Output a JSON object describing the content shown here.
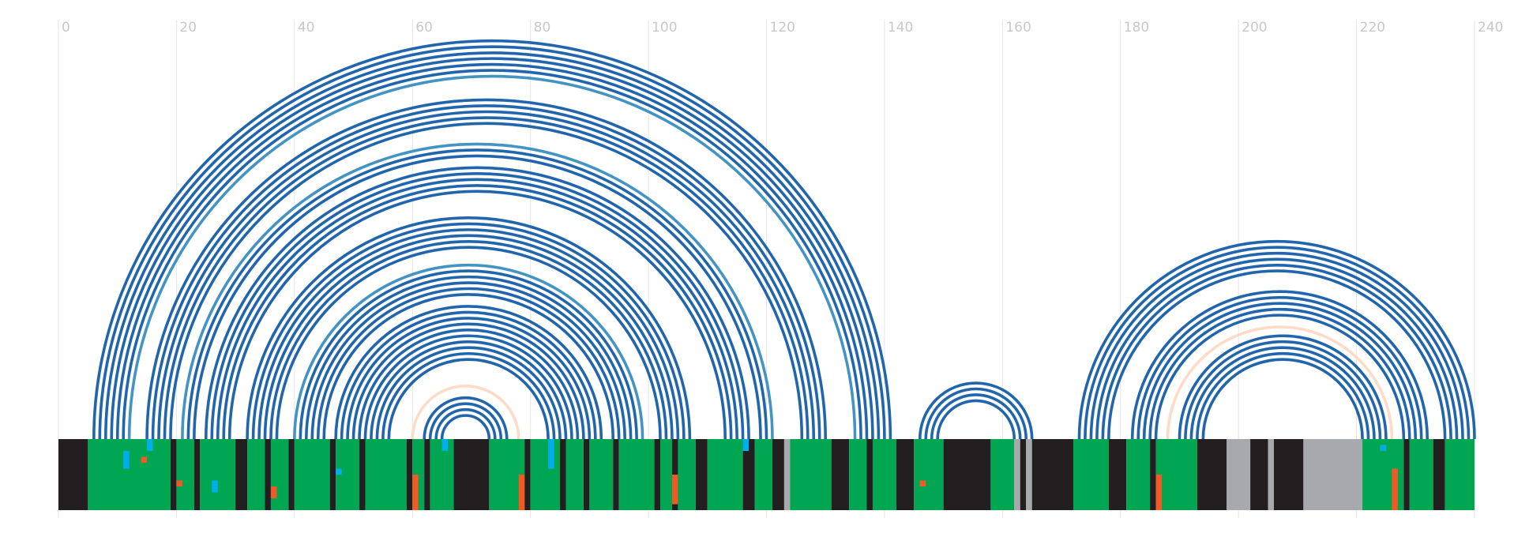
{
  "chart_data": {
    "type": "arc",
    "xlim": [
      0,
      240
    ],
    "xticks": [
      0,
      20,
      40,
      60,
      80,
      100,
      120,
      140,
      160,
      180,
      200,
      220,
      240
    ],
    "grid": true,
    "arcs": [
      {
        "i": 6,
        "j": 141,
        "color": "#2166ac"
      },
      {
        "i": 7,
        "j": 140,
        "color": "#2166ac"
      },
      {
        "i": 8,
        "j": 139,
        "color": "#2166ac"
      },
      {
        "i": 9,
        "j": 138,
        "color": "#2166ac"
      },
      {
        "i": 10,
        "j": 137,
        "color": "#2166ac"
      },
      {
        "i": 11,
        "j": 136,
        "color": "#2166ac"
      },
      {
        "i": 12,
        "j": 135,
        "color": "#4393c3"
      },
      {
        "i": 15,
        "j": 130,
        "color": "#2166ac"
      },
      {
        "i": 16,
        "j": 129,
        "color": "#2166ac"
      },
      {
        "i": 17,
        "j": 128,
        "color": "#2166ac"
      },
      {
        "i": 18,
        "j": 127,
        "color": "#2166ac"
      },
      {
        "i": 19,
        "j": 126,
        "color": "#2166ac"
      },
      {
        "i": 21,
        "j": 121,
        "color": "#4393c3"
      },
      {
        "i": 22,
        "j": 120,
        "color": "#2166ac"
      },
      {
        "i": 23,
        "j": 119,
        "color": "#2166ac"
      },
      {
        "i": 25,
        "j": 117,
        "color": "#2166ac"
      },
      {
        "i": 26,
        "j": 116,
        "color": "#2166ac"
      },
      {
        "i": 27,
        "j": 115,
        "color": "#2166ac"
      },
      {
        "i": 28,
        "j": 114,
        "color": "#2166ac"
      },
      {
        "i": 29,
        "j": 113,
        "color": "#2166ac"
      },
      {
        "i": 32,
        "j": 107,
        "color": "#2166ac"
      },
      {
        "i": 33,
        "j": 106,
        "color": "#2166ac"
      },
      {
        "i": 34,
        "j": 105,
        "color": "#2166ac"
      },
      {
        "i": 35,
        "j": 104,
        "color": "#2166ac"
      },
      {
        "i": 36,
        "j": 103,
        "color": "#2166ac"
      },
      {
        "i": 37,
        "j": 102,
        "color": "#2166ac"
      },
      {
        "i": 40,
        "j": 99,
        "color": "#4393c3"
      },
      {
        "i": 41,
        "j": 98,
        "color": "#2166ac"
      },
      {
        "i": 42,
        "j": 97,
        "color": "#2166ac"
      },
      {
        "i": 43,
        "j": 96,
        "color": "#2166ac"
      },
      {
        "i": 44,
        "j": 95,
        "color": "#2166ac"
      },
      {
        "i": 45,
        "j": 94,
        "color": "#2166ac"
      },
      {
        "i": 47,
        "j": 92,
        "color": "#2166ac"
      },
      {
        "i": 48,
        "j": 91,
        "color": "#2166ac"
      },
      {
        "i": 49,
        "j": 90,
        "color": "#2166ac"
      },
      {
        "i": 50,
        "j": 89,
        "color": "#2166ac"
      },
      {
        "i": 51,
        "j": 88,
        "color": "#2166ac"
      },
      {
        "i": 52,
        "j": 87,
        "color": "#2166ac"
      },
      {
        "i": 53,
        "j": 86,
        "color": "#2166ac"
      },
      {
        "i": 54,
        "j": 85,
        "color": "#2166ac"
      },
      {
        "i": 55,
        "j": 84,
        "color": "#2166ac"
      },
      {
        "i": 56,
        "j": 83,
        "color": "#2166ac"
      },
      {
        "i": 60,
        "j": 78,
        "color": "#fddbc7"
      },
      {
        "i": 62,
        "j": 76,
        "color": "#2166ac"
      },
      {
        "i": 63,
        "j": 75,
        "color": "#2166ac"
      },
      {
        "i": 64,
        "j": 74,
        "color": "#2166ac"
      },
      {
        "i": 65,
        "j": 73,
        "color": "#2166ac"
      },
      {
        "i": 146,
        "j": 165,
        "color": "#2166ac"
      },
      {
        "i": 147,
        "j": 164,
        "color": "#2166ac"
      },
      {
        "i": 148,
        "j": 163,
        "color": "#2166ac"
      },
      {
        "i": 149,
        "j": 162,
        "color": "#2166ac"
      },
      {
        "i": 173,
        "j": 240,
        "color": "#2166ac"
      },
      {
        "i": 174,
        "j": 239,
        "color": "#2166ac"
      },
      {
        "i": 175,
        "j": 238,
        "color": "#2166ac"
      },
      {
        "i": 176,
        "j": 237,
        "color": "#2166ac"
      },
      {
        "i": 177,
        "j": 236,
        "color": "#2166ac"
      },
      {
        "i": 178,
        "j": 235,
        "color": "#2166ac"
      },
      {
        "i": 182,
        "j": 232,
        "color": "#2166ac"
      },
      {
        "i": 183,
        "j": 231,
        "color": "#2166ac"
      },
      {
        "i": 184,
        "j": 230,
        "color": "#2166ac"
      },
      {
        "i": 185,
        "j": 229,
        "color": "#2166ac"
      },
      {
        "i": 186,
        "j": 228,
        "color": "#2166ac"
      },
      {
        "i": 188,
        "j": 226,
        "color": "#fddbc7"
      },
      {
        "i": 190,
        "j": 225,
        "color": "#2166ac"
      },
      {
        "i": 191,
        "j": 224,
        "color": "#2166ac"
      },
      {
        "i": 192,
        "j": 223,
        "color": "#2166ac"
      },
      {
        "i": 193,
        "j": 222,
        "color": "#2166ac"
      },
      {
        "i": 194,
        "j": 221,
        "color": "#2166ac"
      }
    ],
    "segments": [
      {
        "start": 0,
        "end": 5,
        "color": "#231f20"
      },
      {
        "start": 5,
        "end": 19,
        "color": "#00a651"
      },
      {
        "start": 19,
        "end": 20,
        "color": "#231f20"
      },
      {
        "start": 20,
        "end": 23,
        "color": "#00a651"
      },
      {
        "start": 23,
        "end": 24,
        "color": "#231f20"
      },
      {
        "start": 24,
        "end": 30,
        "color": "#00a651"
      },
      {
        "start": 30,
        "end": 32,
        "color": "#231f20"
      },
      {
        "start": 32,
        "end": 35,
        "color": "#00a651"
      },
      {
        "start": 35,
        "end": 36,
        "color": "#231f20"
      },
      {
        "start": 36,
        "end": 39,
        "color": "#00a651"
      },
      {
        "start": 39,
        "end": 40,
        "color": "#231f20"
      },
      {
        "start": 40,
        "end": 46,
        "color": "#00a651"
      },
      {
        "start": 46,
        "end": 47,
        "color": "#231f20"
      },
      {
        "start": 47,
        "end": 51,
        "color": "#00a651"
      },
      {
        "start": 51,
        "end": 52,
        "color": "#231f20"
      },
      {
        "start": 52,
        "end": 59,
        "color": "#00a651"
      },
      {
        "start": 59,
        "end": 60,
        "color": "#231f20"
      },
      {
        "start": 60,
        "end": 62,
        "color": "#00a651"
      },
      {
        "start": 62,
        "end": 63,
        "color": "#231f20"
      },
      {
        "start": 63,
        "end": 67,
        "color": "#00a651"
      },
      {
        "start": 67,
        "end": 73,
        "color": "#231f20"
      },
      {
        "start": 73,
        "end": 79,
        "color": "#00a651"
      },
      {
        "start": 79,
        "end": 80,
        "color": "#231f20"
      },
      {
        "start": 80,
        "end": 85,
        "color": "#00a651"
      },
      {
        "start": 85,
        "end": 86,
        "color": "#231f20"
      },
      {
        "start": 86,
        "end": 89,
        "color": "#00a651"
      },
      {
        "start": 89,
        "end": 90,
        "color": "#231f20"
      },
      {
        "start": 90,
        "end": 94,
        "color": "#00a651"
      },
      {
        "start": 94,
        "end": 95,
        "color": "#231f20"
      },
      {
        "start": 95,
        "end": 101,
        "color": "#00a651"
      },
      {
        "start": 101,
        "end": 102,
        "color": "#231f20"
      },
      {
        "start": 102,
        "end": 104,
        "color": "#00a651"
      },
      {
        "start": 104,
        "end": 105,
        "color": "#231f20"
      },
      {
        "start": 105,
        "end": 108,
        "color": "#00a651"
      },
      {
        "start": 108,
        "end": 110,
        "color": "#231f20"
      },
      {
        "start": 110,
        "end": 116,
        "color": "#00a651"
      },
      {
        "start": 116,
        "end": 118,
        "color": "#231f20"
      },
      {
        "start": 118,
        "end": 121,
        "color": "#00a651"
      },
      {
        "start": 121,
        "end": 123,
        "color": "#231f20"
      },
      {
        "start": 123,
        "end": 124,
        "color": "#a7a9ac"
      },
      {
        "start": 124,
        "end": 131,
        "color": "#00a651"
      },
      {
        "start": 131,
        "end": 134,
        "color": "#231f20"
      },
      {
        "start": 134,
        "end": 137,
        "color": "#00a651"
      },
      {
        "start": 137,
        "end": 138,
        "color": "#231f20"
      },
      {
        "start": 138,
        "end": 142,
        "color": "#00a651"
      },
      {
        "start": 142,
        "end": 145,
        "color": "#231f20"
      },
      {
        "start": 145,
        "end": 150,
        "color": "#00a651"
      },
      {
        "start": 150,
        "end": 158,
        "color": "#231f20"
      },
      {
        "start": 158,
        "end": 162,
        "color": "#00a651"
      },
      {
        "start": 162,
        "end": 163,
        "color": "#a7a9ac"
      },
      {
        "start": 163,
        "end": 164,
        "color": "#231f20"
      },
      {
        "start": 164,
        "end": 165,
        "color": "#a7a9ac"
      },
      {
        "start": 165,
        "end": 172,
        "color": "#231f20"
      },
      {
        "start": 172,
        "end": 178,
        "color": "#00a651"
      },
      {
        "start": 178,
        "end": 181,
        "color": "#231f20"
      },
      {
        "start": 181,
        "end": 185,
        "color": "#00a651"
      },
      {
        "start": 185,
        "end": 186,
        "color": "#231f20"
      },
      {
        "start": 186,
        "end": 193,
        "color": "#00a651"
      },
      {
        "start": 193,
        "end": 198,
        "color": "#231f20"
      },
      {
        "start": 198,
        "end": 202,
        "color": "#a7a9ac"
      },
      {
        "start": 202,
        "end": 205,
        "color": "#231f20"
      },
      {
        "start": 205,
        "end": 206,
        "color": "#a7a9ac"
      },
      {
        "start": 206,
        "end": 211,
        "color": "#231f20"
      },
      {
        "start": 211,
        "end": 221,
        "color": "#a7a9ac"
      },
      {
        "start": 221,
        "end": 228,
        "color": "#00a651"
      },
      {
        "start": 228,
        "end": 229,
        "color": "#231f20"
      },
      {
        "start": 229,
        "end": 233,
        "color": "#00a651"
      },
      {
        "start": 233,
        "end": 235,
        "color": "#231f20"
      },
      {
        "start": 235,
        "end": 240,
        "color": "#00a651"
      }
    ],
    "cells": [
      {
        "pos": 15,
        "row": 0,
        "rows": 2,
        "color": "#00aeef"
      },
      {
        "pos": 11,
        "row": 2,
        "rows": 3,
        "color": "#00aeef"
      },
      {
        "pos": 14,
        "row": 3,
        "rows": 1,
        "color": "#f15a24"
      },
      {
        "pos": 20,
        "row": 7,
        "rows": 1,
        "color": "#f15a24"
      },
      {
        "pos": 26,
        "row": 7,
        "rows": 2,
        "color": "#00aeef"
      },
      {
        "pos": 36,
        "row": 8,
        "rows": 2,
        "color": "#f15a24"
      },
      {
        "pos": 47,
        "row": 5,
        "rows": 1,
        "color": "#00aeef"
      },
      {
        "pos": 60,
        "row": 6,
        "rows": 6,
        "color": "#f15a24"
      },
      {
        "pos": 65,
        "row": 0,
        "rows": 2,
        "color": "#00aeef"
      },
      {
        "pos": 78,
        "row": 6,
        "rows": 6,
        "color": "#f15a24"
      },
      {
        "pos": 83,
        "row": 0,
        "rows": 5,
        "color": "#00aeef"
      },
      {
        "pos": 104,
        "row": 6,
        "rows": 5,
        "color": "#f15a24"
      },
      {
        "pos": 116,
        "row": 0,
        "rows": 2,
        "color": "#00aeef"
      },
      {
        "pos": 146,
        "row": 7,
        "rows": 1,
        "color": "#f15a24"
      },
      {
        "pos": 186,
        "row": 6,
        "rows": 6,
        "color": "#f15a24"
      },
      {
        "pos": 224,
        "row": 1,
        "rows": 1,
        "color": "#00aeef"
      },
      {
        "pos": 226,
        "row": 5,
        "rows": 7,
        "color": "#f15a24"
      }
    ]
  }
}
